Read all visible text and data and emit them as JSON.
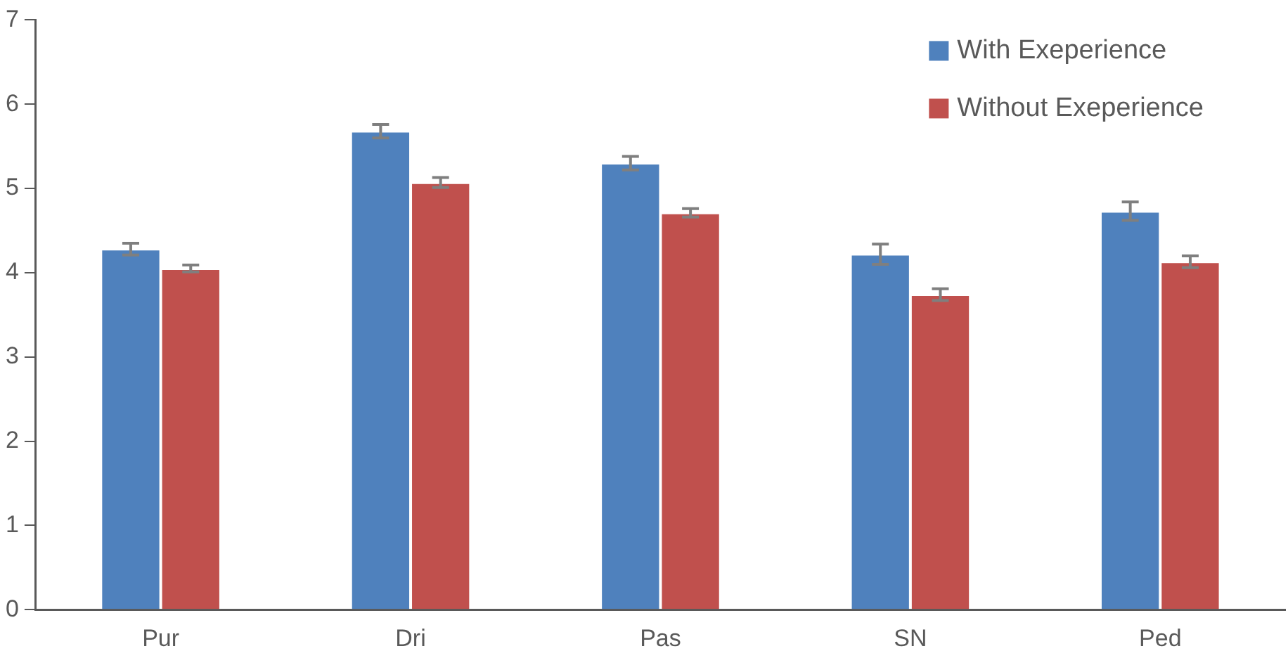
{
  "chart_data": {
    "type": "bar",
    "categories": [
      "Pur",
      "Dri",
      "Pas",
      "SN",
      "Ped"
    ],
    "series": [
      {
        "name": "With Exeperience",
        "color": "#4f81bd",
        "values": [
          4.28,
          5.68,
          5.3,
          4.22,
          4.73
        ],
        "errors": [
          0.07,
          0.08,
          0.08,
          0.12,
          0.11
        ]
      },
      {
        "name": "Without Exeperience",
        "color": "#c0504d",
        "values": [
          4.05,
          5.07,
          4.71,
          3.74,
          4.13
        ],
        "errors": [
          0.04,
          0.06,
          0.05,
          0.07,
          0.07
        ]
      }
    ],
    "ylim": [
      0,
      7
    ],
    "yticks": [
      0,
      1,
      2,
      3,
      4,
      5,
      6,
      7
    ],
    "grid": false,
    "legend": "top right"
  }
}
